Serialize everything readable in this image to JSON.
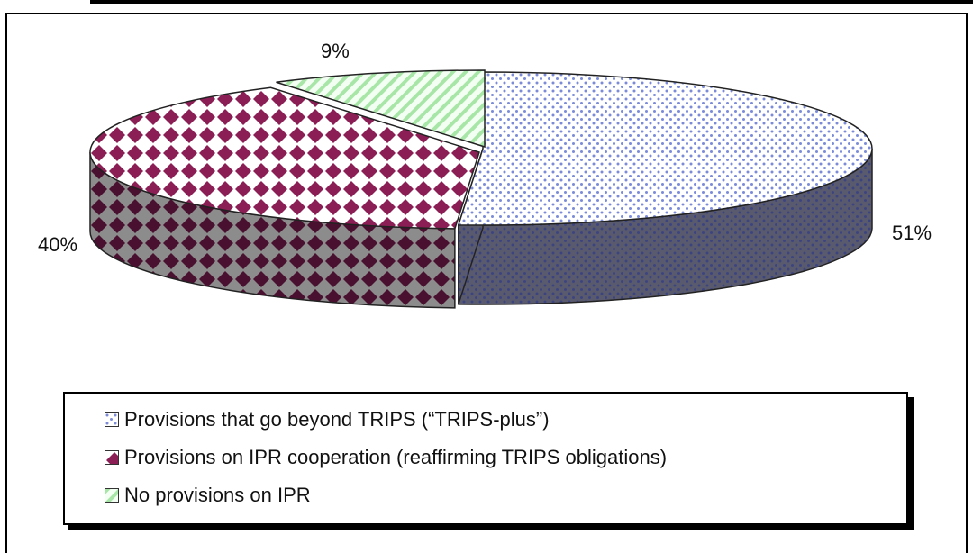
{
  "chart_data": {
    "type": "pie",
    "slices": [
      {
        "label": "Provisions that go beyond TRIPS (“TRIPS-plus”)",
        "value": 51,
        "display": "51%",
        "color": "#b8c0f0",
        "pattern": "dots"
      },
      {
        "label": "Provisions on IPR cooperation (reaffirming TRIPS obligations)",
        "value": 40,
        "display": "40%",
        "color": "#8b1f55",
        "pattern": "diamonds"
      },
      {
        "label": "No provisions on IPR",
        "value": 9,
        "display": "9%",
        "color": "#c8f5c8",
        "pattern": "diagonal-stripes"
      }
    ],
    "legend_position": "bottom",
    "style": "3d-exploded"
  }
}
